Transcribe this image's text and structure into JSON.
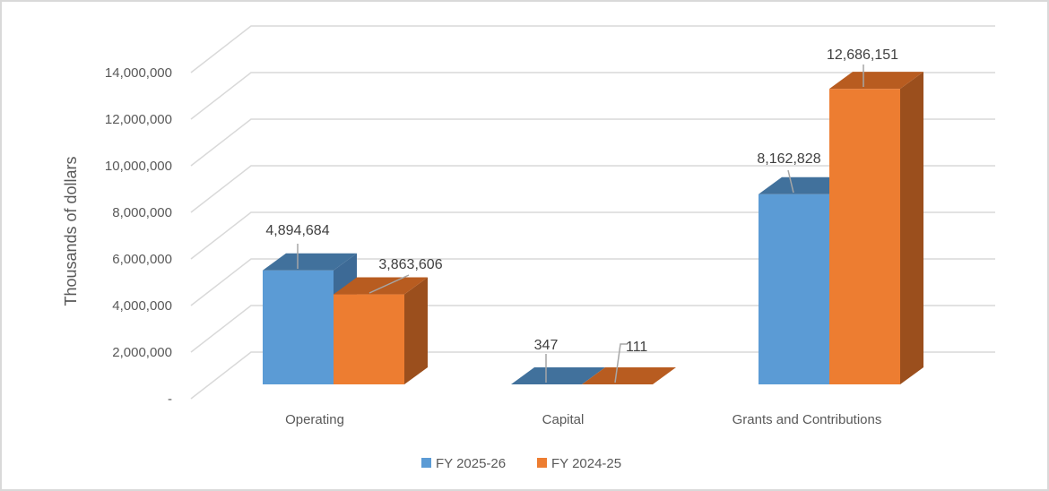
{
  "chart_data": {
    "type": "bar",
    "style": "3d-clustered-column",
    "title": "",
    "xlabel": "",
    "ylabel": "Thousands of dollars",
    "ylim": [
      0,
      14000000
    ],
    "yticks": [
      0,
      2000000,
      4000000,
      6000000,
      8000000,
      10000000,
      12000000,
      14000000
    ],
    "ytick_labels": [
      "-",
      "2,000,000",
      "4,000,000",
      "6,000,000",
      "8,000,000",
      "10,000,000",
      "12,000,000",
      "14,000,000"
    ],
    "grid": true,
    "legend_position": "bottom",
    "categories": [
      "Operating",
      "Capital",
      "Grants and Contributions"
    ],
    "series": [
      {
        "name": "FY 2025-26",
        "color": "#5b9bd5",
        "top_color": "#41719c",
        "side_color": "#3d6a96",
        "values": [
          4894684,
          347,
          8162828
        ],
        "labels": [
          "4,894,684",
          "347",
          "8,162,828"
        ]
      },
      {
        "name": "FY 2024-25",
        "color": "#ed7d31",
        "top_color": "#b85c20",
        "side_color": "#9b4f1d",
        "values": [
          3863606,
          111,
          12686151
        ],
        "labels": [
          "3,863,606",
          "111",
          "12,686,151"
        ]
      }
    ]
  }
}
